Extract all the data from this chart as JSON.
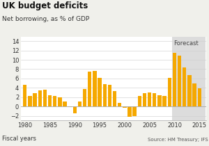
{
  "title": "UK budget deficits",
  "subtitle": "Net borrowing, as % of GDP",
  "xlabel": "Fiscal years",
  "source": "Source: HM Treasury; IFS",
  "forecast_label": "Forecast",
  "bar_color": "#F5A800",
  "forecast_color": "#DCDCDC",
  "forecast_start_year": 2010,
  "years": [
    1980,
    1981,
    1982,
    1983,
    1984,
    1985,
    1986,
    1987,
    1988,
    1989,
    1990,
    1991,
    1992,
    1993,
    1994,
    1995,
    1996,
    1997,
    1998,
    1999,
    2000,
    2001,
    2002,
    2003,
    2004,
    2005,
    2006,
    2007,
    2008,
    2009,
    2010,
    2011,
    2012,
    2013,
    2014,
    2015
  ],
  "values": [
    4.7,
    2.2,
    2.9,
    3.5,
    3.6,
    2.4,
    2.3,
    2.0,
    1.1,
    -0.1,
    -1.5,
    1.0,
    3.7,
    7.4,
    7.6,
    6.2,
    4.8,
    4.6,
    3.3,
    0.8,
    -0.3,
    -2.2,
    -2.0,
    2.2,
    2.8,
    3.0,
    2.8,
    2.4,
    2.3,
    6.2,
    11.5,
    10.9,
    8.4,
    6.8,
    5.0,
    3.9
  ],
  "ylim": [
    -3,
    15
  ],
  "yticks": [
    -2,
    0,
    2,
    4,
    6,
    8,
    10,
    12,
    14
  ],
  "xlim": [
    1979.2,
    2016.3
  ],
  "xticks": [
    1980,
    1985,
    1990,
    1995,
    2000,
    2005,
    2010,
    2015
  ],
  "background_color": "#f0f0eb",
  "plot_bg_color": "#ffffff",
  "grid_color": "#cccccc",
  "title_fontsize": 8.5,
  "subtitle_fontsize": 6.5,
  "tick_fontsize": 6,
  "source_fontsize": 5,
  "forecast_fontsize": 6
}
